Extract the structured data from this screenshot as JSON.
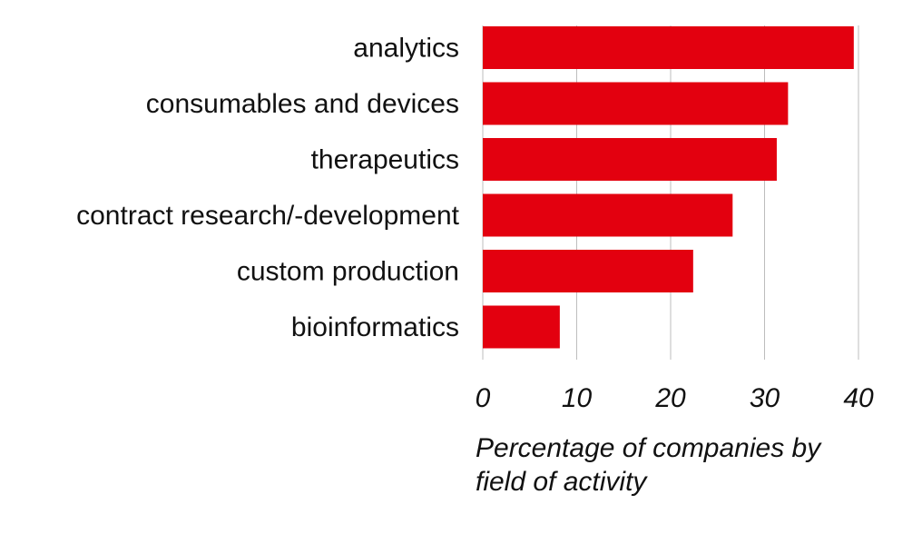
{
  "chart_data": {
    "type": "bar",
    "orientation": "horizontal",
    "categories": [
      "analytics",
      "consumables and devices",
      "therapeutics",
      "contract research/-development",
      "custom production",
      "bioinformatics"
    ],
    "values": [
      39.5,
      32.5,
      31.3,
      26.6,
      22.4,
      8.2
    ],
    "xlim": [
      0,
      40
    ],
    "xticks": [
      "0",
      "10",
      "20",
      "30",
      "40"
    ],
    "xlabel_lines": [
      "Percentage of companies by",
      "field of activity"
    ],
    "ylabel": "",
    "grid": "vertical",
    "bar_color": "#e3000f",
    "grid_color": "#bdbdbd"
  }
}
